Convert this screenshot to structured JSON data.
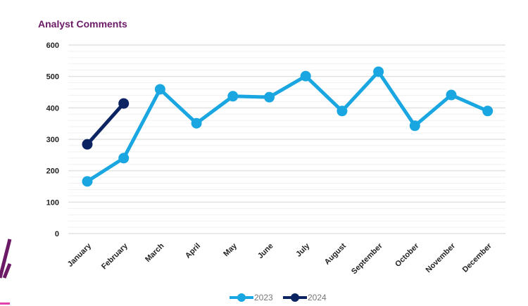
{
  "chart_data": {
    "type": "line",
    "title": "Analyst Comments",
    "categories": [
      "January",
      "February",
      "March",
      "April",
      "May",
      "June",
      "July",
      "August",
      "September",
      "October",
      "November",
      "December"
    ],
    "series": [
      {
        "name": "2023",
        "color": "#1aa6e0",
        "values": [
          166,
          240,
          459,
          351,
          437,
          434,
          501,
          390,
          515,
          343,
          441,
          390
        ]
      },
      {
        "name": "2024",
        "color": "#0c2461",
        "values": [
          284,
          414,
          null,
          null,
          null,
          null,
          null,
          null,
          null,
          null,
          null,
          null
        ]
      }
    ],
    "ylim": [
      0,
      600
    ],
    "yticks": [
      "0",
      "100",
      "200",
      "300",
      "400",
      "500",
      "600"
    ],
    "grid": true,
    "legend": "bottom"
  },
  "colors": {
    "title": "#6b1a66",
    "decoration": "#6b1a66"
  }
}
